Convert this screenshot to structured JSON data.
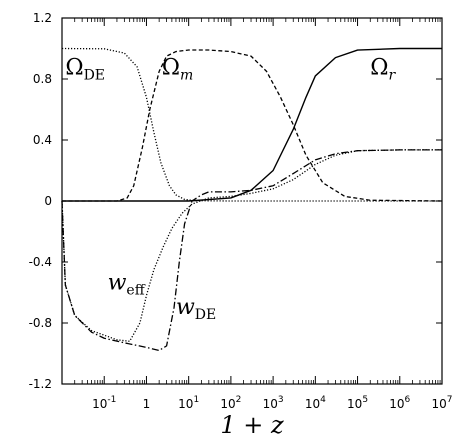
{
  "chart_data": {
    "type": "line",
    "title": "",
    "xlabel": "1 + z",
    "ylabel": "",
    "x_scale": "log",
    "xlim": [
      0.01,
      10000000
    ],
    "ylim": [
      -1.2,
      1.2
    ],
    "x_ticks": [
      {
        "value": 0.1,
        "base": "10",
        "exp": "-1"
      },
      {
        "value": 1,
        "base": "1",
        "exp": ""
      },
      {
        "value": 10,
        "base": "10",
        "exp": "1"
      },
      {
        "value": 100,
        "base": "10",
        "exp": "2"
      },
      {
        "value": 1000,
        "base": "10",
        "exp": "3"
      },
      {
        "value": 10000,
        "base": "10",
        "exp": "4"
      },
      {
        "value": 100000,
        "base": "10",
        "exp": "5"
      },
      {
        "value": 1000000,
        "base": "10",
        "exp": "6"
      },
      {
        "value": 10000000,
        "base": "10",
        "exp": "7"
      }
    ],
    "y_ticks": [
      {
        "value": 1.2,
        "label": "1.2"
      },
      {
        "value": 0.8,
        "label": "0.8"
      },
      {
        "value": 0.4,
        "label": "0.4"
      },
      {
        "value": 0,
        "label": "0"
      },
      {
        "value": -0.4,
        "label": "-0.4"
      },
      {
        "value": -0.8,
        "label": "-0.8"
      },
      {
        "value": -1.2,
        "label": "-1.2"
      }
    ],
    "grid": false,
    "series": [
      {
        "name": "Ω_DE",
        "style": "dotted",
        "x": [
          0.01,
          0.1,
          0.3,
          0.6,
          1.0,
          1.5,
          2.2,
          3.5,
          5,
          8,
          15,
          100,
          10000000
        ],
        "y": [
          1.0,
          0.998,
          0.97,
          0.88,
          0.68,
          0.45,
          0.25,
          0.1,
          0.04,
          0.01,
          0.002,
          0.0,
          0.0
        ]
      },
      {
        "name": "Ω_m",
        "style": "dashed",
        "x": [
          0.01,
          0.2,
          0.35,
          0.5,
          0.8,
          1.2,
          2,
          3,
          5,
          10,
          30,
          100,
          300,
          700,
          1500,
          3000,
          6000,
          15000,
          50000,
          200000,
          10000000
        ],
        "y": [
          0.0,
          0.0,
          0.02,
          0.1,
          0.35,
          0.6,
          0.85,
          0.95,
          0.98,
          0.99,
          0.99,
          0.98,
          0.95,
          0.85,
          0.68,
          0.5,
          0.3,
          0.12,
          0.03,
          0.005,
          0.0
        ]
      },
      {
        "name": "Ω_r",
        "style": "solid",
        "x": [
          0.01,
          10,
          100,
          300,
          1000,
          3000,
          6000,
          10000,
          30000,
          100000,
          1000000,
          10000000
        ],
        "y": [
          0.0,
          0.0,
          0.02,
          0.07,
          0.2,
          0.47,
          0.68,
          0.82,
          0.94,
          0.99,
          1.0,
          1.0
        ]
      },
      {
        "name": "w_eff",
        "style": "dotted",
        "x": [
          0.01,
          0.012,
          0.02,
          0.05,
          0.1,
          0.2,
          0.4,
          0.7,
          1.0,
          1.5,
          2.5,
          4,
          7,
          12,
          30,
          100,
          300,
          1000,
          3000,
          10000,
          30000,
          100000,
          1000000,
          10000000
        ],
        "y": [
          0.0,
          -0.55,
          -0.75,
          -0.85,
          -0.88,
          -0.91,
          -0.92,
          -0.8,
          -0.62,
          -0.45,
          -0.3,
          -0.18,
          -0.08,
          -0.02,
          0.02,
          0.03,
          0.05,
          0.08,
          0.14,
          0.24,
          0.3,
          0.33,
          0.335,
          0.335
        ]
      },
      {
        "name": "w_DE",
        "style": "dashdot",
        "x": [
          0.01,
          0.012,
          0.02,
          0.05,
          0.1,
          0.3,
          1.0,
          2.0,
          3.0,
          4.5,
          6,
          8,
          12,
          20,
          30,
          100,
          300,
          1000,
          3000,
          10000,
          30000,
          100000,
          1000000,
          10000000
        ],
        "y": [
          0.0,
          -0.55,
          -0.75,
          -0.86,
          -0.9,
          -0.93,
          -0.96,
          -0.98,
          -0.95,
          -0.7,
          -0.4,
          -0.15,
          0.0,
          0.04,
          0.06,
          0.06,
          0.07,
          0.1,
          0.18,
          0.27,
          0.31,
          0.33,
          0.335,
          0.335
        ]
      }
    ],
    "annotations": [
      {
        "main": "Ω",
        "sub": "DE",
        "at_x": 0.012,
        "at_y": 0.83
      },
      {
        "main": "Ω",
        "sub": "m",
        "at_x": 2.3,
        "at_y": 0.83
      },
      {
        "main": "Ω",
        "sub": "r",
        "at_x": 200000,
        "at_y": 0.83
      },
      {
        "main": "w",
        "sub": "eff",
        "at_x": 0.12,
        "at_y": -0.58
      },
      {
        "main": "w",
        "sub": "DE",
        "at_x": 5,
        "at_y": -0.74
      }
    ]
  }
}
